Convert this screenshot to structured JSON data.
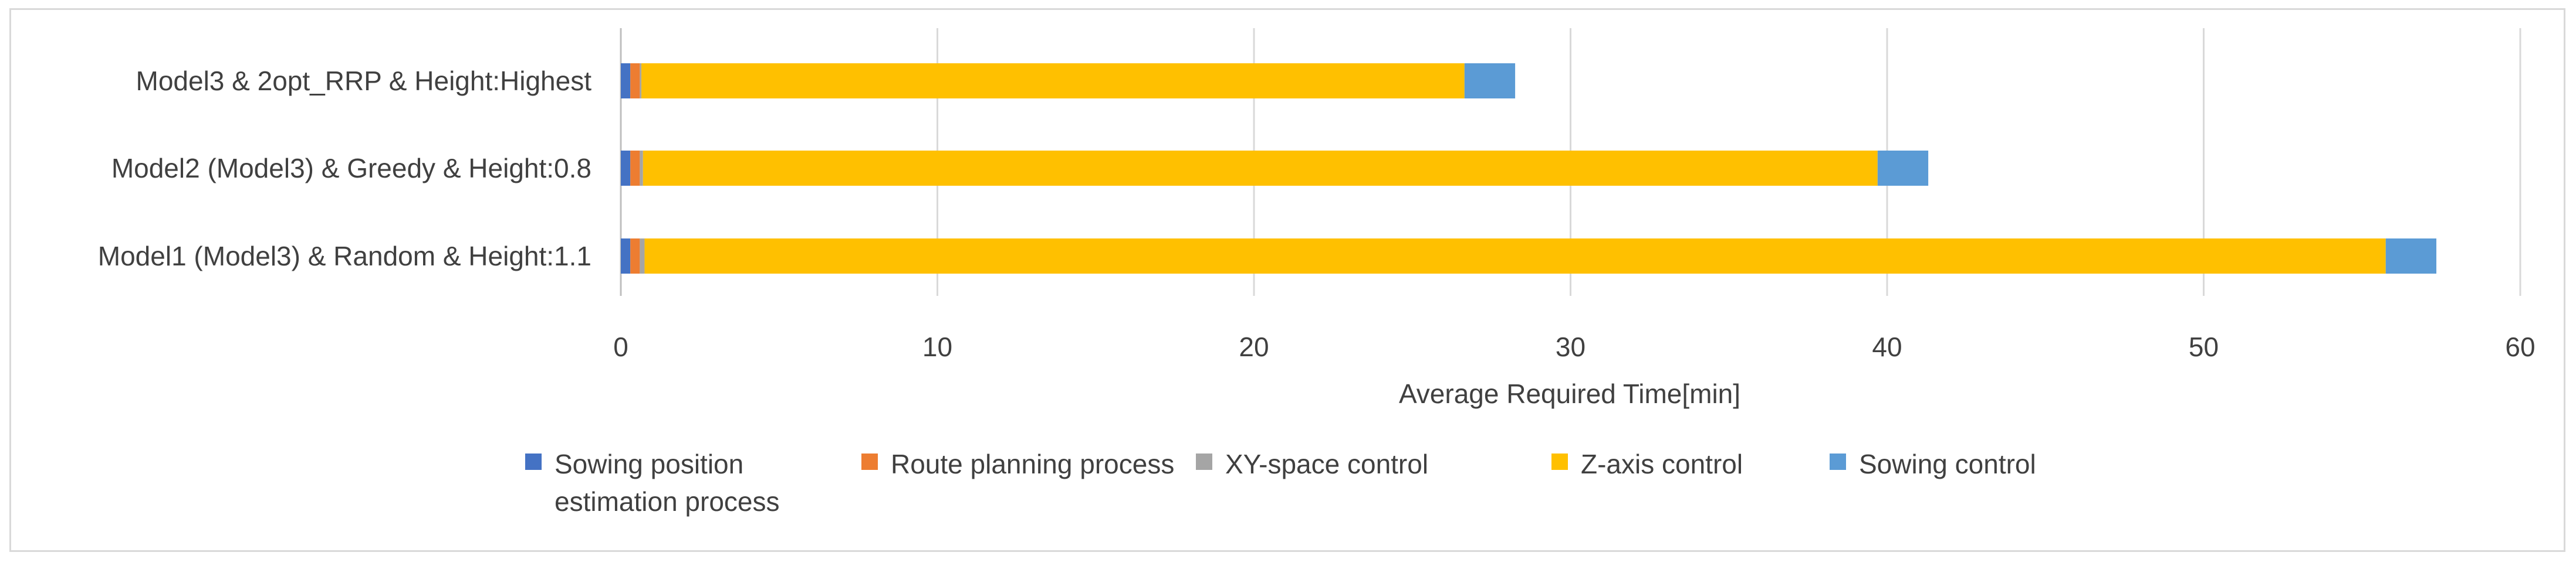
{
  "chart_data": {
    "type": "bar",
    "orientation": "horizontal",
    "stacked": true,
    "title": "",
    "xlabel": "Average Required Time[min]",
    "ylabel": "",
    "xlim": [
      0,
      60
    ],
    "xticks": [
      "0",
      "10",
      "20",
      "30",
      "40",
      "50",
      "60"
    ],
    "grid": true,
    "legend_position": "bottom",
    "categories": [
      "Model3 & 2opt_RRP & Height:Highest",
      "Model2 (Model3) & Greedy & Height:0.8",
      "Model1 (Model3) & Random & Height:1.1"
    ],
    "series": [
      {
        "name": "Sowing position estimation process",
        "color": "#4472c4",
        "values": [
          0.3,
          0.3,
          0.3
        ]
      },
      {
        "name": "Route planning process",
        "color": "#ed7d31",
        "values": [
          0.3,
          0.3,
          0.3
        ]
      },
      {
        "name": "XY-space control",
        "color": "#a5a5a5",
        "values": [
          0.05,
          0.1,
          0.15
        ]
      },
      {
        "name": "Z-axis control",
        "color": "#ffc000",
        "values": [
          26.0,
          39.0,
          55.0
        ]
      },
      {
        "name": "Sowing control",
        "color": "#5b9bd5",
        "values": [
          1.6,
          1.6,
          1.6
        ]
      }
    ]
  },
  "legend": {
    "items": [
      {
        "lines": [
          "Sowing position",
          "estimation process"
        ],
        "color": "#4472c4"
      },
      {
        "lines": [
          "Route planning process"
        ],
        "color": "#ed7d31"
      },
      {
        "lines": [
          "XY-space control"
        ],
        "color": "#a5a5a5"
      },
      {
        "lines": [
          "Z-axis control"
        ],
        "color": "#ffc000"
      },
      {
        "lines": [
          "Sowing control"
        ],
        "color": "#5b9bd5"
      }
    ]
  }
}
